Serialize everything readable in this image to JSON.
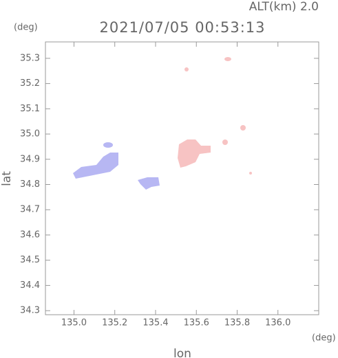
{
  "chart_data": {
    "type": "map-field",
    "altitude_label": "ALT(km) 2.0",
    "title": "2021/07/05 00:53:13",
    "y_unit": "(deg)",
    "x_unit": "(deg)",
    "xlabel": "lon",
    "ylabel": "lat",
    "xlim": [
      134.86,
      136.2
    ],
    "ylim": [
      34.284,
      35.365
    ],
    "xticks": [
      {
        "value": 135.0,
        "label": "135.0"
      },
      135.2,
      135.4,
      135.6,
      135.8,
      {
        "value": 136.0,
        "label": "136.0"
      }
    ],
    "yticks": [
      34.3,
      34.4,
      34.5,
      34.6,
      34.7,
      34.8,
      34.9,
      {
        "value": 35.0,
        "label": "35.0"
      },
      35.1,
      35.2,
      35.3
    ]
  }
}
